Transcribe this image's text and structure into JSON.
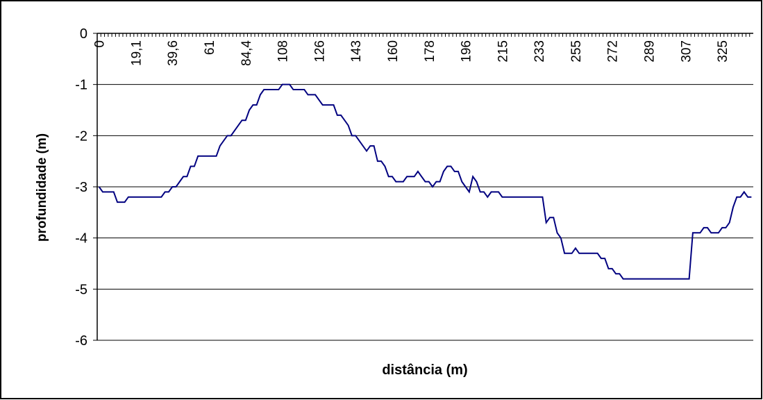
{
  "chart_data": {
    "type": "line",
    "x_label": "distância (m)",
    "y_label": "profundidade (m)",
    "categories": [
      "0",
      null,
      null,
      null,
      null,
      null,
      null,
      null,
      null,
      null,
      "19,1",
      null,
      null,
      null,
      null,
      null,
      null,
      null,
      null,
      null,
      "39,6",
      null,
      null,
      null,
      null,
      null,
      null,
      null,
      null,
      null,
      "61",
      null,
      null,
      null,
      null,
      null,
      null,
      null,
      null,
      null,
      "84,4",
      null,
      null,
      null,
      null,
      null,
      null,
      null,
      null,
      null,
      "108",
      null,
      null,
      null,
      null,
      null,
      null,
      null,
      null,
      null,
      "126",
      null,
      null,
      null,
      null,
      null,
      null,
      null,
      null,
      null,
      "143",
      null,
      null,
      null,
      null,
      null,
      null,
      null,
      null,
      null,
      "160",
      null,
      null,
      null,
      null,
      null,
      null,
      null,
      null,
      null,
      "178",
      null,
      null,
      null,
      null,
      null,
      null,
      null,
      null,
      null,
      "196",
      null,
      null,
      null,
      null,
      null,
      null,
      null,
      null,
      null,
      "215",
      null,
      null,
      null,
      null,
      null,
      null,
      null,
      null,
      null,
      "233",
      null,
      null,
      null,
      null,
      null,
      null,
      null,
      null,
      null,
      "255",
      null,
      null,
      null,
      null,
      null,
      null,
      null,
      null,
      null,
      "272",
      null,
      null,
      null,
      null,
      null,
      null,
      null,
      null,
      null,
      "289",
      null,
      null,
      null,
      null,
      null,
      null,
      null,
      null,
      null,
      "307",
      null,
      null,
      null,
      null,
      null,
      null,
      null,
      null,
      null,
      "325",
      null,
      null,
      null,
      null,
      null,
      null,
      null,
      null
    ],
    "values": [
      -3.0,
      -3.1,
      -3.1,
      -3.1,
      -3.1,
      -3.3,
      -3.3,
      -3.3,
      -3.2,
      -3.2,
      -3.2,
      -3.2,
      -3.2,
      -3.2,
      -3.2,
      -3.2,
      -3.2,
      -3.2,
      -3.1,
      -3.1,
      -3.0,
      -3.0,
      -2.9,
      -2.8,
      -2.8,
      -2.6,
      -2.6,
      -2.4,
      -2.4,
      -2.4,
      -2.4,
      -2.4,
      -2.4,
      -2.2,
      -2.1,
      -2.0,
      -2.0,
      -1.9,
      -1.8,
      -1.7,
      -1.7,
      -1.5,
      -1.4,
      -1.4,
      -1.2,
      -1.1,
      -1.1,
      -1.1,
      -1.1,
      -1.1,
      -1.0,
      -1.0,
      -1.0,
      -1.1,
      -1.1,
      -1.1,
      -1.1,
      -1.2,
      -1.2,
      -1.2,
      -1.3,
      -1.4,
      -1.4,
      -1.4,
      -1.4,
      -1.6,
      -1.6,
      -1.7,
      -1.8,
      -2.0,
      -2.0,
      -2.1,
      -2.2,
      -2.3,
      -2.2,
      -2.2,
      -2.5,
      -2.5,
      -2.6,
      -2.8,
      -2.8,
      -2.9,
      -2.9,
      -2.9,
      -2.8,
      -2.8,
      -2.8,
      -2.7,
      -2.8,
      -2.9,
      -2.9,
      -3.0,
      -2.9,
      -2.9,
      -2.7,
      -2.6,
      -2.6,
      -2.7,
      -2.7,
      -2.9,
      -3.0,
      -3.1,
      -2.8,
      -2.9,
      -3.1,
      -3.1,
      -3.2,
      -3.1,
      -3.1,
      -3.1,
      -3.2,
      -3.2,
      -3.2,
      -3.2,
      -3.2,
      -3.2,
      -3.2,
      -3.2,
      -3.2,
      -3.2,
      -3.2,
      -3.2,
      -3.7,
      -3.6,
      -3.6,
      -3.9,
      -4.0,
      -4.3,
      -4.3,
      -4.3,
      -4.2,
      -4.3,
      -4.3,
      -4.3,
      -4.3,
      -4.3,
      -4.3,
      -4.4,
      -4.4,
      -4.6,
      -4.6,
      -4.7,
      -4.7,
      -4.8,
      -4.8,
      -4.8,
      -4.8,
      -4.8,
      -4.8,
      -4.8,
      -4.8,
      -4.8,
      -4.8,
      -4.8,
      -4.8,
      -4.8,
      -4.8,
      -4.8,
      -4.8,
      -4.8,
      -4.8,
      -4.8,
      -3.9,
      -3.9,
      -3.9,
      -3.8,
      -3.8,
      -3.9,
      -3.9,
      -3.9,
      -3.8,
      -3.8,
      -3.7,
      -3.4,
      -3.2,
      -3.2,
      -3.1,
      -3.2,
      -3.2
    ],
    "color": "#000080",
    "ylim": [
      -6,
      0
    ],
    "yticks": [
      0,
      -1,
      -2,
      -3,
      -4,
      -5,
      -6
    ],
    "grid": true
  }
}
